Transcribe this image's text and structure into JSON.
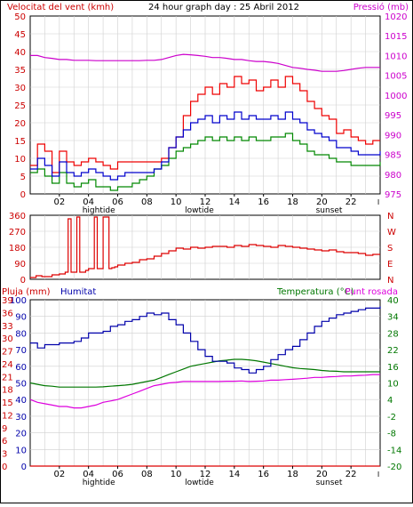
{
  "header": {
    "wind_label": "Velocitat del vent (kmh)",
    "title": "24 hour graph day : 25 Abril 2012",
    "pressure_label": "Pressió (mb)"
  },
  "bottom_header": {
    "rain_label": "Pluja (mm)",
    "humidity_label": "Humitat",
    "temperature_label": "Temperatura (°C)",
    "dewpoint_label": "Punt rosada"
  },
  "time_axis": {
    "ticks": [
      "02",
      "04",
      "06",
      "08",
      "10",
      "12",
      "14",
      "16",
      "18",
      "20",
      "22"
    ],
    "last_tick": "I",
    "annotations": [
      {
        "label": "hightide",
        "hour": 4.7
      },
      {
        "label": "lowtide",
        "hour": 11.6
      },
      {
        "label": "sunset",
        "hour": 20.5
      }
    ]
  },
  "direction_panel": {
    "left_ticks": [
      "360",
      "270",
      "180",
      "90",
      "0"
    ],
    "right_labels": [
      "N",
      "W",
      "S",
      "E",
      "N"
    ]
  },
  "colors": {
    "wind_gust": "#ee0000",
    "wind_avg": "#0000cc",
    "wind_low": "#008800",
    "pressure": "#cc00cc",
    "direction": "#dd0000",
    "humidity": "#0000aa",
    "temperature": "#007700",
    "dewpoint": "#dd00dd",
    "rain": "#dd0000",
    "axis_left": "#cc0000",
    "axis_right": "#cc00cc",
    "axis_temp": "#007700",
    "grid": "#cfcfcf"
  },
  "chart_data": [
    {
      "type": "line",
      "x_unit": "hour",
      "xlim": [
        0,
        24
      ],
      "ylim": [
        0,
        50
      ],
      "y2lim": [
        975,
        1020
      ],
      "y_ticks": [
        0,
        5,
        10,
        15,
        20,
        25,
        30,
        35,
        40,
        45,
        50
      ],
      "y2_ticks": [
        975,
        980,
        985,
        990,
        995,
        1000,
        1005,
        1010,
        1015,
        1020
      ],
      "x": [
        0,
        0.5,
        1,
        1.5,
        2,
        2.5,
        3,
        3.5,
        4,
        4.5,
        5,
        5.5,
        6,
        6.5,
        7,
        7.5,
        8,
        8.5,
        9,
        9.5,
        10,
        10.5,
        11,
        11.5,
        12,
        12.5,
        13,
        13.5,
        14,
        14.5,
        15,
        15.5,
        16,
        16.5,
        17,
        17.5,
        18,
        18.5,
        19,
        19.5,
        20,
        20.5,
        21,
        21.5,
        22,
        22.5,
        23,
        23.5,
        24
      ],
      "series": [
        {
          "key": "gust",
          "axis": "left",
          "values": [
            8,
            14,
            12,
            6,
            12,
            9,
            8,
            9,
            10,
            9,
            8,
            7,
            9,
            9,
            9,
            9,
            9,
            9,
            10,
            13,
            16,
            22,
            26,
            28,
            30,
            28,
            31,
            30,
            33,
            31,
            32,
            29,
            30,
            32,
            30,
            33,
            31,
            29,
            26,
            24,
            22,
            21,
            17,
            18,
            16,
            15,
            14,
            15,
            15
          ]
        },
        {
          "key": "avg",
          "axis": "left",
          "values": [
            7,
            10,
            8,
            5,
            9,
            6,
            5,
            6,
            7,
            6,
            5,
            4,
            5,
            6,
            6,
            6,
            6,
            7,
            9,
            13,
            16,
            18,
            20,
            21,
            22,
            20,
            22,
            21,
            23,
            21,
            22,
            21,
            21,
            22,
            21,
            23,
            21,
            20,
            18,
            17,
            16,
            15,
            13,
            13,
            12,
            11,
            11,
            11,
            12
          ]
        },
        {
          "key": "low",
          "axis": "left",
          "values": [
            6,
            7,
            5,
            3,
            6,
            3,
            2,
            3,
            4,
            2,
            2,
            1,
            2,
            2,
            3,
            4,
            5,
            7,
            8,
            10,
            12,
            13,
            14,
            15,
            16,
            15,
            16,
            15,
            16,
            15,
            16,
            15,
            15,
            16,
            16,
            17,
            15,
            14,
            12,
            11,
            11,
            10,
            9,
            9,
            8,
            8,
            8,
            8,
            9
          ]
        },
        {
          "key": "pressure",
          "axis": "right",
          "values": [
            1010,
            1010,
            1009.5,
            1009.3,
            1009,
            1009,
            1008.8,
            1008.8,
            1008.8,
            1008.7,
            1008.7,
            1008.7,
            1008.7,
            1008.7,
            1008.7,
            1008.7,
            1008.8,
            1008.8,
            1009,
            1009.5,
            1010,
            1010.3,
            1010.2,
            1010,
            1009.8,
            1009.5,
            1009.5,
            1009.3,
            1009,
            1009,
            1008.7,
            1008.5,
            1008.5,
            1008.3,
            1008,
            1007.5,
            1007,
            1006.8,
            1006.5,
            1006.3,
            1006,
            1006,
            1006,
            1006.2,
            1006.5,
            1006.8,
            1007,
            1007,
            1007
          ]
        }
      ]
    },
    {
      "type": "line",
      "x_unit": "hour",
      "xlim": [
        0,
        24
      ],
      "ylim": [
        0,
        360
      ],
      "series": [
        {
          "key": "direction",
          "axis": "left",
          "x": [
            0,
            0.4,
            0.8,
            1.5,
            2,
            2.4,
            2.6,
            2.8,
            3.0,
            3.2,
            3.4,
            3.6,
            3.8,
            4.0,
            4.4,
            4.6,
            4.8,
            5.0,
            5.4,
            5.6,
            5.8,
            6,
            6.5,
            7,
            7.5,
            8,
            8.5,
            9,
            9.5,
            10,
            10.5,
            11,
            11.5,
            12,
            12.5,
            13,
            13.5,
            14,
            14.5,
            15,
            15.5,
            16,
            16.5,
            17,
            17.5,
            18,
            18.5,
            19,
            19.5,
            20,
            20.5,
            21,
            21.5,
            22,
            22.5,
            23,
            23.5,
            24
          ],
          "values": [
            10,
            20,
            15,
            25,
            30,
            40,
            340,
            40,
            40,
            350,
            40,
            40,
            50,
            60,
            350,
            60,
            60,
            350,
            60,
            65,
            70,
            80,
            90,
            95,
            110,
            115,
            130,
            145,
            160,
            175,
            170,
            180,
            175,
            180,
            185,
            185,
            180,
            190,
            185,
            195,
            190,
            185,
            180,
            190,
            185,
            180,
            175,
            170,
            165,
            160,
            165,
            155,
            150,
            150,
            145,
            135,
            140,
            140
          ]
        }
      ]
    },
    {
      "type": "line",
      "x_unit": "hour",
      "xlim": [
        0,
        24
      ],
      "ylim": [
        0,
        100
      ],
      "y_ticks_humidity": [
        100,
        90,
        80,
        70,
        60,
        50,
        40,
        30,
        20,
        10,
        0
      ],
      "y_ticks_rain": [
        39,
        36,
        33,
        30,
        27,
        24,
        21,
        18,
        15,
        12,
        9,
        6,
        3,
        0
      ],
      "y2lim": [
        -20,
        40
      ],
      "y2_ticks": [
        40,
        34,
        28,
        22,
        16,
        10,
        4,
        -2,
        -8,
        -14,
        -20
      ],
      "x": [
        0,
        0.5,
        1,
        1.5,
        2,
        2.5,
        3,
        3.5,
        4,
        4.5,
        5,
        5.5,
        6,
        6.5,
        7,
        7.5,
        8,
        8.5,
        9,
        9.5,
        10,
        10.5,
        11,
        11.5,
        12,
        12.5,
        13,
        13.5,
        14,
        14.5,
        15,
        15.5,
        16,
        16.5,
        17,
        17.5,
        18,
        18.5,
        19,
        19.5,
        20,
        20.5,
        21,
        21.5,
        22,
        22.5,
        23,
        23.5,
        24
      ],
      "series": [
        {
          "key": "humidity",
          "axis": "left",
          "values": [
            74,
            71,
            73,
            73,
            74,
            74,
            75,
            77,
            80,
            80,
            81,
            84,
            85,
            87,
            88,
            90,
            92,
            91,
            92,
            88,
            85,
            80,
            75,
            70,
            66,
            63,
            63,
            62,
            59,
            58,
            56,
            58,
            60,
            64,
            67,
            70,
            72,
            76,
            80,
            84,
            87,
            89,
            91,
            92,
            93,
            94,
            95,
            95,
            96
          ]
        },
        {
          "key": "temperature",
          "axis": "right",
          "values": [
            10,
            9.5,
            9,
            8.8,
            8.5,
            8.5,
            8.5,
            8.5,
            8.5,
            8.5,
            8.6,
            8.8,
            9,
            9.2,
            9.5,
            10,
            10.5,
            11,
            12,
            13,
            14,
            15,
            16,
            16.5,
            17,
            17.5,
            18,
            18.2,
            18.5,
            18.5,
            18.3,
            18,
            17.5,
            17,
            16.5,
            16,
            15.5,
            15.2,
            15,
            14.8,
            14.5,
            14.3,
            14.2,
            14,
            14,
            14,
            14,
            14,
            14
          ]
        },
        {
          "key": "dewpoint",
          "axis": "right",
          "values": [
            4,
            3,
            2.5,
            2,
            1.5,
            1.5,
            1,
            1,
            1.5,
            2,
            3,
            3.5,
            4,
            5,
            6,
            7,
            8,
            9,
            9.5,
            10,
            10.2,
            10.5,
            10.5,
            10.5,
            10.5,
            10.5,
            10.5,
            10.6,
            10.6,
            10.7,
            10.5,
            10.6,
            10.7,
            11,
            11,
            11.2,
            11.3,
            11.5,
            11.7,
            12,
            12,
            12.2,
            12.3,
            12.5,
            12.5,
            12.7,
            12.8,
            13,
            13
          ]
        },
        {
          "key": "rain",
          "axis": "rain",
          "values": [
            0,
            0,
            0,
            0,
            0,
            0,
            0,
            0,
            0,
            0,
            0,
            0,
            0,
            0,
            0,
            0,
            0,
            0,
            0,
            0,
            0,
            0,
            0,
            0,
            0,
            0,
            0,
            0,
            0,
            0,
            0,
            0,
            0,
            0,
            0,
            0,
            0,
            0,
            0,
            0,
            0,
            0,
            0,
            0,
            0,
            0,
            0,
            0,
            0
          ]
        }
      ]
    }
  ]
}
